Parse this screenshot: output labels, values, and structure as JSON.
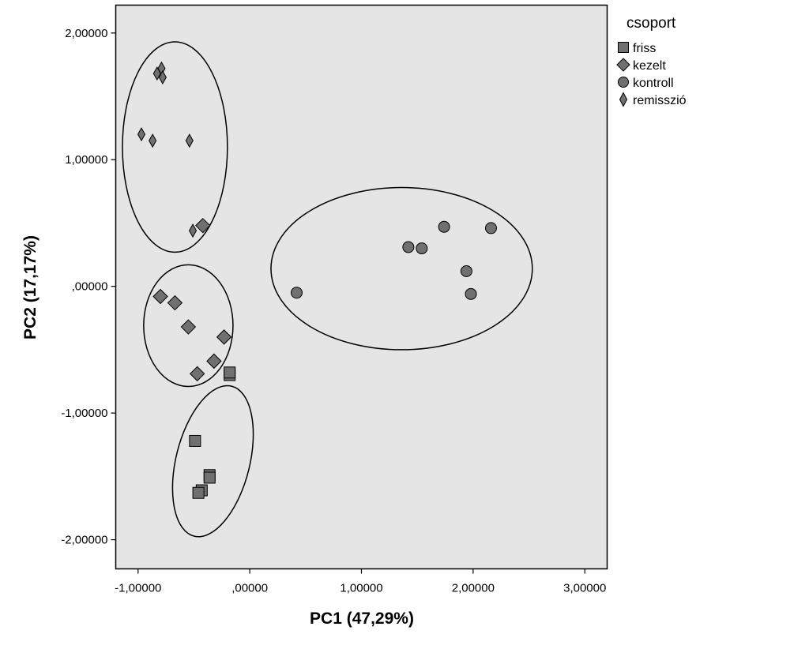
{
  "chart_data": {
    "type": "scatter",
    "title": "",
    "xlabel": "PC1 (47,29%)",
    "ylabel": "PC2 (17,17%)",
    "xlim": [
      -1.2,
      3.2
    ],
    "ylim": [
      -2.23,
      2.22
    ],
    "grid": false,
    "plot_background": "#e5e5e5",
    "marker_color": "#707070",
    "x_ticks": [
      -1,
      0,
      1,
      2,
      3
    ],
    "x_tick_labels": [
      "-1,00000",
      ",00000",
      "1,00000",
      "2,00000",
      "3,00000"
    ],
    "y_ticks": [
      2,
      1,
      0,
      -1,
      -2
    ],
    "y_tick_labels": [
      "2,00000",
      "1,00000",
      ",00000",
      "-1,00000",
      "-2,00000"
    ],
    "legend": {
      "title": "csoport",
      "position": "right",
      "entries": [
        {
          "label": "friss",
          "marker": "square"
        },
        {
          "label": "kezelt",
          "marker": "diamond"
        },
        {
          "label": "kontroll",
          "marker": "circle"
        },
        {
          "label": "remisszió",
          "marker": "thin-diamond"
        }
      ]
    },
    "series": [
      {
        "name": "friss",
        "marker": "square",
        "points": [
          {
            "x": -0.18,
            "y": -0.7
          },
          {
            "x": -0.18,
            "y": -0.68
          },
          {
            "x": -0.49,
            "y": -1.22
          },
          {
            "x": -0.36,
            "y": -1.49
          },
          {
            "x": -0.36,
            "y": -1.51
          },
          {
            "x": -0.43,
            "y": -1.61
          },
          {
            "x": -0.46,
            "y": -1.63
          }
        ]
      },
      {
        "name": "kezelt",
        "marker": "diamond",
        "points": [
          {
            "x": -0.42,
            "y": 0.48
          },
          {
            "x": -0.8,
            "y": -0.08
          },
          {
            "x": -0.67,
            "y": -0.13
          },
          {
            "x": -0.55,
            "y": -0.32
          },
          {
            "x": -0.23,
            "y": -0.4
          },
          {
            "x": -0.32,
            "y": -0.59
          },
          {
            "x": -0.47,
            "y": -0.69
          }
        ]
      },
      {
        "name": "kontroll",
        "marker": "circle",
        "points": [
          {
            "x": 1.74,
            "y": 0.47
          },
          {
            "x": 2.16,
            "y": 0.46
          },
          {
            "x": 1.42,
            "y": 0.31
          },
          {
            "x": 1.54,
            "y": 0.3
          },
          {
            "x": 1.94,
            "y": 0.12
          },
          {
            "x": 0.42,
            "y": -0.05
          },
          {
            "x": 1.98,
            "y": -0.06
          }
        ]
      },
      {
        "name": "remisszió",
        "marker": "thin-diamond",
        "points": [
          {
            "x": -0.79,
            "y": 1.72
          },
          {
            "x": -0.83,
            "y": 1.68
          },
          {
            "x": -0.78,
            "y": 1.65
          },
          {
            "x": -0.97,
            "y": 1.2
          },
          {
            "x": -0.87,
            "y": 1.15
          },
          {
            "x": -0.54,
            "y": 1.15
          },
          {
            "x": -0.51,
            "y": 0.44
          }
        ]
      }
    ],
    "ellipses": [
      {
        "group": "remisszió",
        "cx": -0.67,
        "cy": 1.1,
        "rx": 0.47,
        "ry": 0.83,
        "rotation_deg": 0
      },
      {
        "group": "kezelt",
        "cx": -0.55,
        "cy": -0.31,
        "rx": 0.4,
        "ry": 0.48,
        "rotation_deg": 0
      },
      {
        "group": "friss",
        "cx": -0.33,
        "cy": -1.38,
        "rx": 0.33,
        "ry": 0.61,
        "rotation_deg": 14
      },
      {
        "group": "kontroll",
        "cx": 1.36,
        "cy": 0.14,
        "rx": 1.17,
        "ry": 0.64,
        "rotation_deg": 0
      }
    ]
  }
}
